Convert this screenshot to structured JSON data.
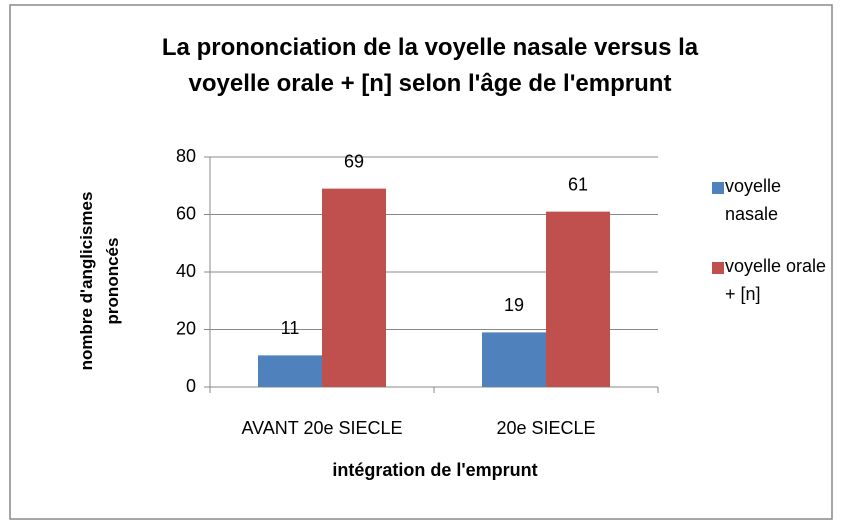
{
  "chart_data": {
    "type": "bar",
    "title": "La prononciation de la voyelle nasale versus la voyelle orale + [n] selon l'âge de l'emprunt",
    "categories": [
      "AVANT 20e SIECLE",
      "20e SIECLE"
    ],
    "series": [
      {
        "name": "voyelle nasale",
        "color": "#4f81bd",
        "values": [
          11,
          19
        ]
      },
      {
        "name": "voyelle orale + [n]",
        "color": "#c0504d",
        "values": [
          69,
          61
        ]
      }
    ],
    "x_label": "intégration de l'emprunt",
    "y_label": "nombre d'anglicismes prononcés",
    "ylim": [
      0,
      80
    ],
    "yticks": [
      0,
      20,
      40,
      60,
      80
    ],
    "grid": true,
    "legend": "right"
  }
}
